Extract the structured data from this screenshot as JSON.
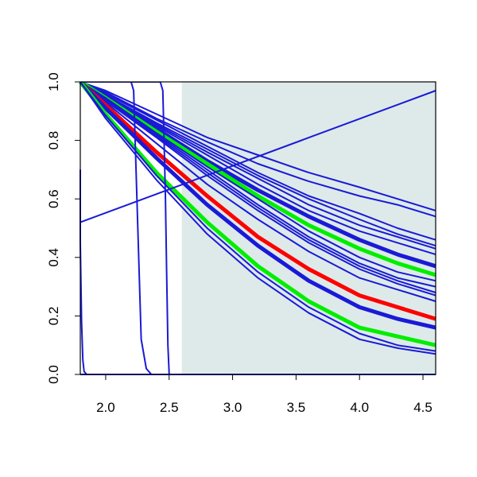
{
  "chart_data": {
    "type": "line",
    "title": "",
    "xlabel": "",
    "ylabel": "",
    "xlim": [
      1.8,
      4.6
    ],
    "ylim": [
      0.0,
      1.0
    ],
    "xticks": [
      "2.0",
      "2.5",
      "3.0",
      "3.5",
      "4.0",
      "4.5"
    ],
    "yticks": [
      "0.0",
      "0.2",
      "0.4",
      "0.6",
      "0.8",
      "1.0"
    ],
    "grid": false,
    "legend": "none",
    "shaded_region": {
      "x": [
        2.6,
        4.6
      ],
      "color": "#deeaea"
    },
    "colors": {
      "blue": "#1a1ad6",
      "red": "#ff0000",
      "green": "#00ee00"
    },
    "series": [
      {
        "color": "blue",
        "width": "thin",
        "x": [
          1.8,
          2.0,
          2.4,
          2.8,
          3.2,
          3.6,
          4.0,
          4.3,
          4.6
        ],
        "y": [
          1.0,
          0.97,
          0.89,
          0.81,
          0.75,
          0.69,
          0.64,
          0.6,
          0.56
        ]
      },
      {
        "color": "blue",
        "width": "thin",
        "x": [
          1.8,
          2.0,
          2.4,
          2.8,
          3.2,
          3.6,
          4.0,
          4.3,
          4.6
        ],
        "y": [
          1.0,
          0.965,
          0.875,
          0.795,
          0.72,
          0.66,
          0.61,
          0.58,
          0.54
        ]
      },
      {
        "color": "blue",
        "width": "thin",
        "x": [
          1.8,
          2.0,
          2.4,
          2.8,
          3.2,
          3.6,
          4.0,
          4.3,
          4.6
        ],
        "y": [
          1.0,
          0.96,
          0.87,
          0.78,
          0.69,
          0.61,
          0.55,
          0.5,
          0.46
        ]
      },
      {
        "color": "blue",
        "width": "thin",
        "x": [
          1.8,
          2.0,
          2.4,
          2.8,
          3.2,
          3.6,
          4.0,
          4.3,
          4.6
        ],
        "y": [
          1.0,
          0.955,
          0.86,
          0.77,
          0.68,
          0.6,
          0.53,
          0.48,
          0.44
        ]
      },
      {
        "color": "blue",
        "width": "thin",
        "x": [
          1.8,
          2.0,
          2.4,
          2.8,
          3.2,
          3.6,
          4.0,
          4.3,
          4.6
        ],
        "y": [
          1.0,
          0.955,
          0.855,
          0.76,
          0.67,
          0.58,
          0.51,
          0.47,
          0.43
        ]
      },
      {
        "color": "blue",
        "width": "thin",
        "x": [
          1.8,
          2.0,
          2.4,
          2.8,
          3.2,
          3.6,
          4.0,
          4.3,
          4.6
        ],
        "y": [
          1.0,
          0.95,
          0.85,
          0.75,
          0.65,
          0.56,
          0.49,
          0.45,
          0.41
        ]
      },
      {
        "color": "blue",
        "width": "thick",
        "x": [
          1.8,
          2.0,
          2.4,
          2.8,
          3.2,
          3.6,
          4.0,
          4.3,
          4.6
        ],
        "y": [
          1.0,
          0.95,
          0.84,
          0.73,
          0.63,
          0.54,
          0.46,
          0.41,
          0.37
        ]
      },
      {
        "color": "green",
        "width": "thick",
        "x": [
          1.8,
          2.0,
          2.4,
          2.8,
          3.2,
          3.6,
          4.0,
          4.3,
          4.6
        ],
        "y": [
          1.0,
          0.945,
          0.83,
          0.72,
          0.61,
          0.51,
          0.43,
          0.38,
          0.34
        ]
      },
      {
        "color": "blue",
        "width": "thin",
        "x": [
          1.8,
          2.0,
          2.4,
          2.8,
          3.2,
          3.6,
          4.0,
          4.3,
          4.6
        ],
        "y": [
          1.0,
          0.945,
          0.825,
          0.71,
          0.6,
          0.49,
          0.4,
          0.35,
          0.32
        ]
      },
      {
        "color": "blue",
        "width": "thin",
        "x": [
          1.8,
          2.0,
          2.4,
          2.8,
          3.2,
          3.6,
          4.0,
          4.3,
          4.6
        ],
        "y": [
          1.0,
          0.94,
          0.82,
          0.7,
          0.58,
          0.47,
          0.38,
          0.33,
          0.3
        ]
      },
      {
        "color": "blue",
        "width": "thin",
        "x": [
          1.8,
          2.0,
          2.4,
          2.8,
          3.2,
          3.6,
          4.0,
          4.3,
          4.6
        ],
        "y": [
          1.0,
          0.94,
          0.815,
          0.69,
          0.57,
          0.46,
          0.37,
          0.32,
          0.28
        ]
      },
      {
        "color": "blue",
        "width": "thin",
        "x": [
          1.8,
          2.0,
          2.4,
          2.8,
          3.2,
          3.6,
          4.0,
          4.3,
          4.6
        ],
        "y": [
          1.0,
          0.935,
          0.81,
          0.68,
          0.56,
          0.45,
          0.36,
          0.31,
          0.27
        ]
      },
      {
        "color": "blue",
        "width": "thin",
        "x": [
          1.8,
          2.0,
          2.4,
          2.8,
          3.2,
          3.6,
          4.0,
          4.3,
          4.6
        ],
        "y": [
          1.0,
          0.93,
          0.79,
          0.65,
          0.53,
          0.42,
          0.33,
          0.29,
          0.25
        ]
      },
      {
        "color": "red",
        "width": "thick",
        "x": [
          1.8,
          2.0,
          2.4,
          2.8,
          3.2,
          3.6,
          4.0,
          4.3,
          4.6
        ],
        "y": [
          1.0,
          0.92,
          0.76,
          0.61,
          0.47,
          0.36,
          0.27,
          0.23,
          0.19
        ]
      },
      {
        "color": "blue",
        "width": "thick",
        "x": [
          1.8,
          2.0,
          2.4,
          2.8,
          3.2,
          3.6,
          4.0,
          4.3,
          4.6
        ],
        "y": [
          1.0,
          0.91,
          0.74,
          0.58,
          0.44,
          0.32,
          0.23,
          0.19,
          0.16
        ]
      },
      {
        "color": "green",
        "width": "thick",
        "x": [
          1.8,
          2.0,
          2.4,
          2.8,
          3.2,
          3.6,
          4.0,
          4.3,
          4.6
        ],
        "y": [
          1.0,
          0.89,
          0.69,
          0.52,
          0.37,
          0.25,
          0.16,
          0.13,
          0.1
        ]
      },
      {
        "color": "blue",
        "width": "thin",
        "x": [
          1.8,
          2.0,
          2.4,
          2.8,
          3.2,
          3.6,
          4.0,
          4.3,
          4.6
        ],
        "y": [
          1.0,
          0.885,
          0.68,
          0.5,
          0.35,
          0.23,
          0.14,
          0.1,
          0.08
        ]
      },
      {
        "color": "blue",
        "width": "thin",
        "x": [
          1.8,
          2.0,
          2.4,
          2.8,
          3.2,
          3.6,
          4.0,
          4.3,
          4.6
        ],
        "y": [
          1.0,
          0.875,
          0.665,
          0.48,
          0.33,
          0.21,
          0.12,
          0.09,
          0.07
        ]
      },
      {
        "color": "blue",
        "width": "thin",
        "x": [
          1.8,
          4.6
        ],
        "y": [
          0.52,
          0.97
        ]
      },
      {
        "color": "blue",
        "width": "thin",
        "x": [
          1.8,
          2.2,
          2.22,
          2.25,
          2.28,
          2.32,
          2.36,
          2.4
        ],
        "y": [
          1.0,
          1.0,
          0.97,
          0.55,
          0.12,
          0.02,
          0.0,
          0.0
        ]
      },
      {
        "color": "blue",
        "width": "thin",
        "x": [
          1.8,
          2.43,
          2.45,
          2.47,
          2.48,
          2.49,
          2.5,
          2.6
        ],
        "y": [
          1.0,
          1.0,
          0.97,
          0.62,
          0.35,
          0.1,
          0.0,
          0.0
        ]
      },
      {
        "color": "blue",
        "width": "thin",
        "x": [
          1.8,
          1.8,
          1.81,
          1.82,
          1.83,
          1.85,
          1.9,
          2.0
        ],
        "y": [
          0.7,
          0.45,
          0.18,
          0.05,
          0.01,
          0.0,
          0.0,
          0.0
        ]
      },
      {
        "color": "blue",
        "width": "thin",
        "x": [
          1.8,
          2.0,
          3.0,
          4.0,
          4.6
        ],
        "y": [
          0.0,
          0.0,
          0.0,
          0.0,
          0.0
        ]
      }
    ]
  }
}
